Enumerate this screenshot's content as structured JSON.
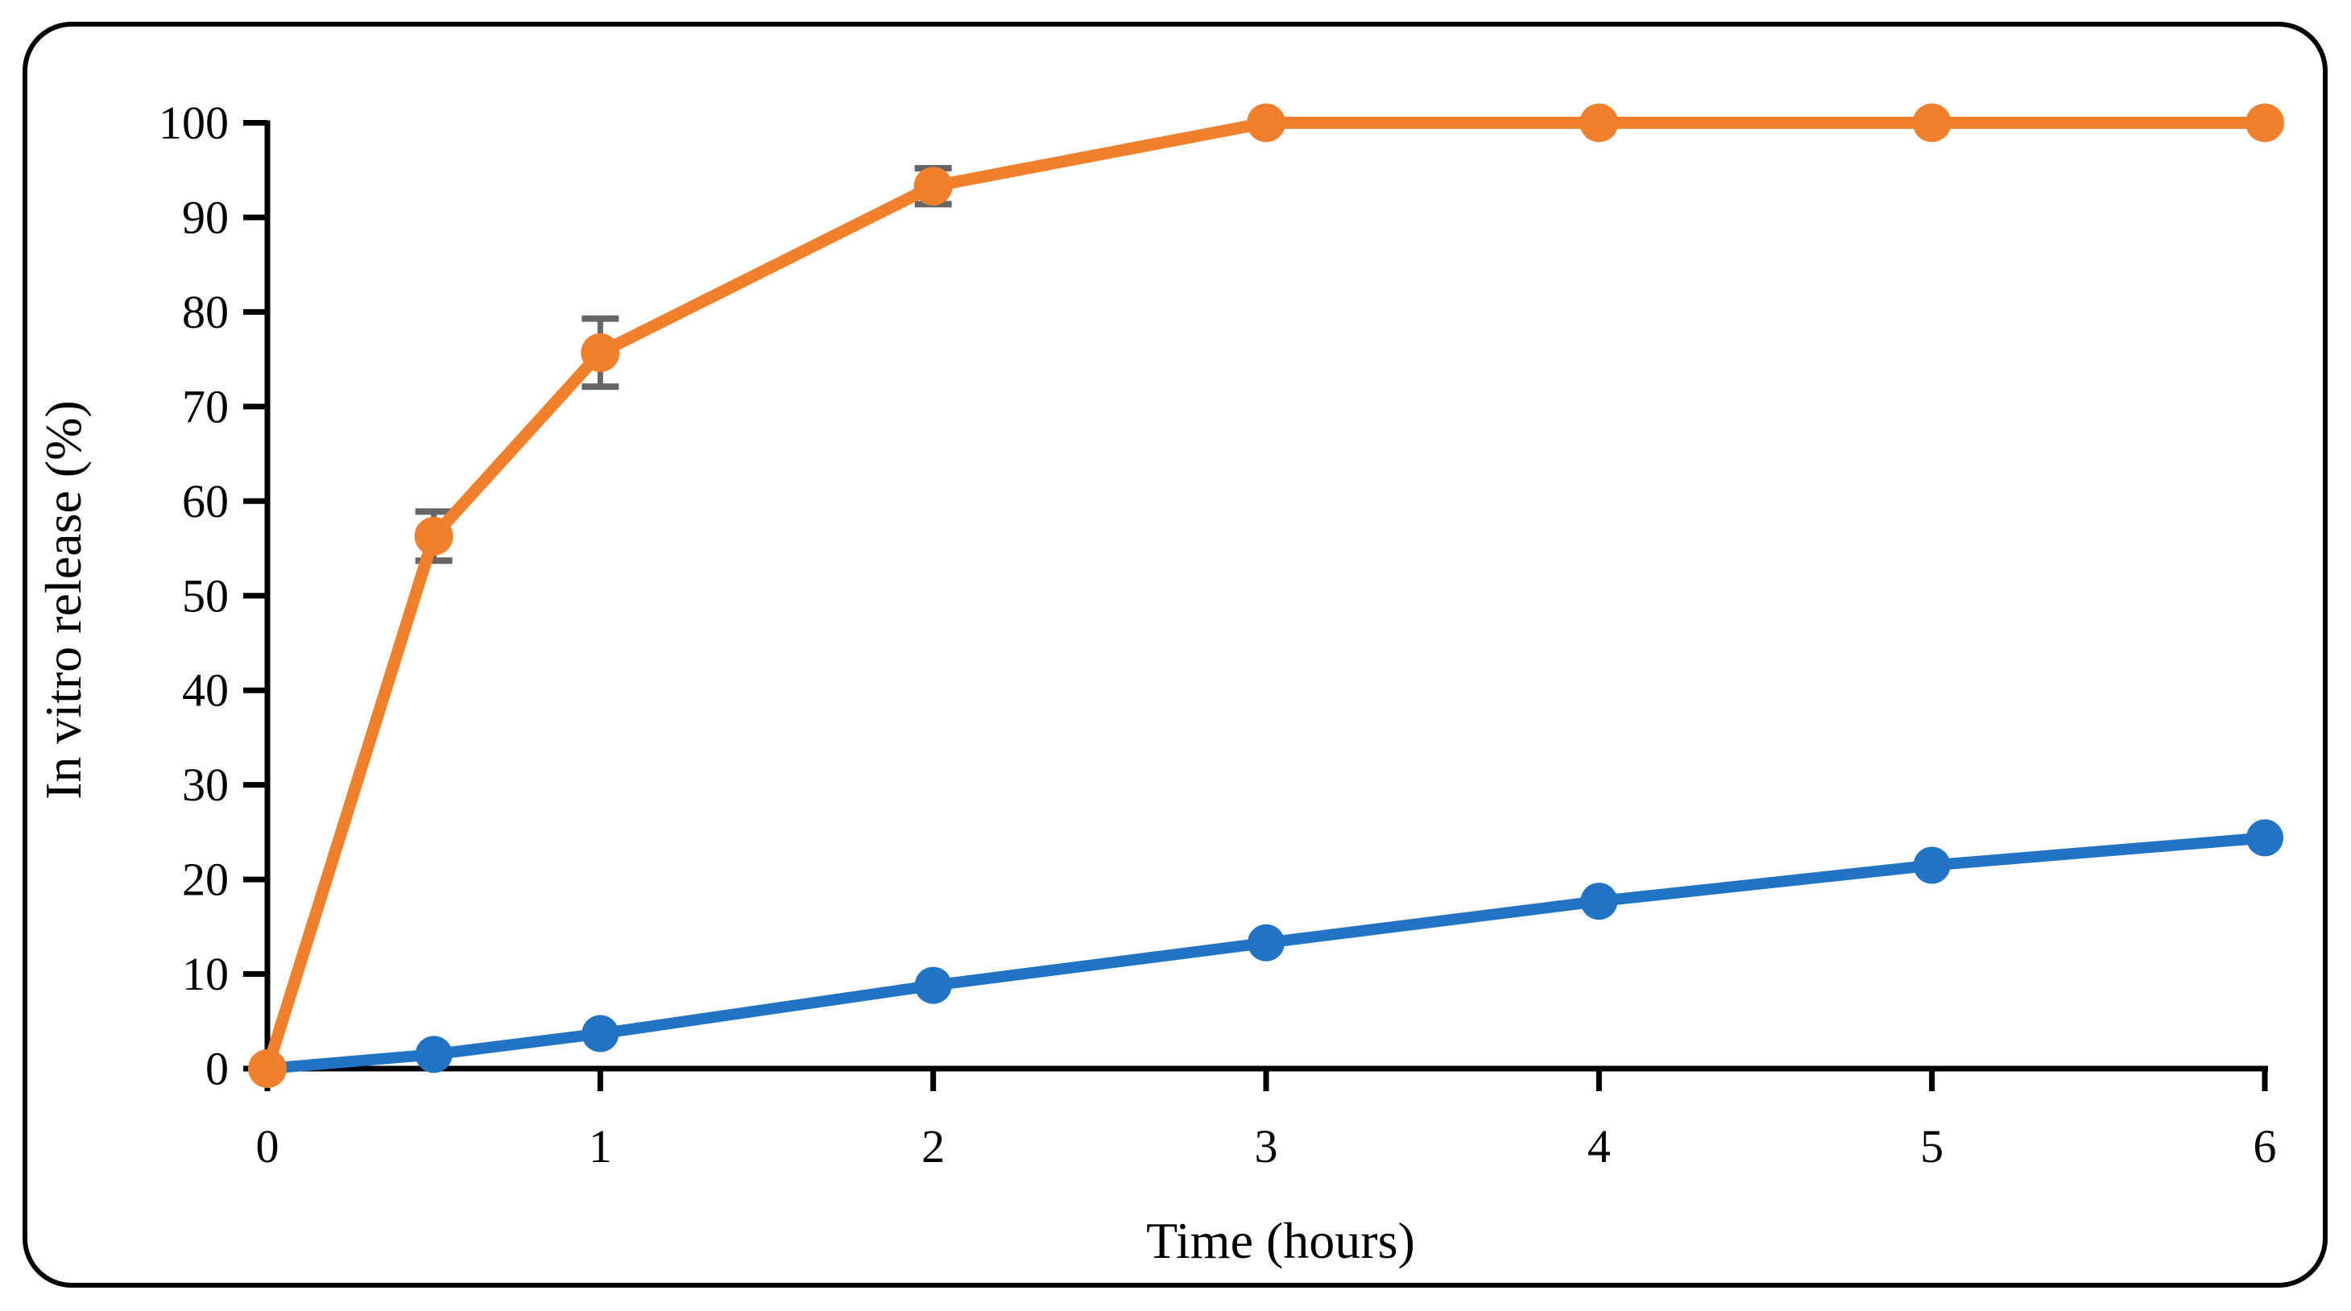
{
  "figure": {
    "background": "#FFFFFF",
    "border_color": "#000000"
  },
  "chart_data": {
    "type": "line",
    "title": "",
    "xlabel": "Time (hours)",
    "ylabel": "In vitro release (%)",
    "xlim": [
      0,
      6
    ],
    "ylim": [
      0,
      100
    ],
    "x_ticks": [
      0,
      1,
      2,
      3,
      4,
      5,
      6
    ],
    "y_ticks": [
      0,
      10,
      20,
      30,
      40,
      50,
      60,
      70,
      80,
      90,
      100
    ],
    "grid": false,
    "legend": "none",
    "x": [
      0,
      0.5,
      1,
      2,
      3,
      4,
      5,
      6
    ],
    "series": [
      {
        "name": "blue-series",
        "color": "#2173C4",
        "marker": "circle",
        "values": [
          0,
          1.5,
          3.7,
          8.8,
          13.3,
          17.7,
          21.5,
          24.4
        ]
      },
      {
        "name": "orange-series",
        "color": "#F1802D",
        "marker": "circle",
        "values": [
          0,
          56.3,
          75.7,
          93.3,
          100,
          100,
          100,
          100
        ],
        "error_bars": [
          0,
          2.6,
          3.6,
          1.9,
          0,
          0,
          0,
          0
        ],
        "error_color": "#666666"
      }
    ]
  }
}
